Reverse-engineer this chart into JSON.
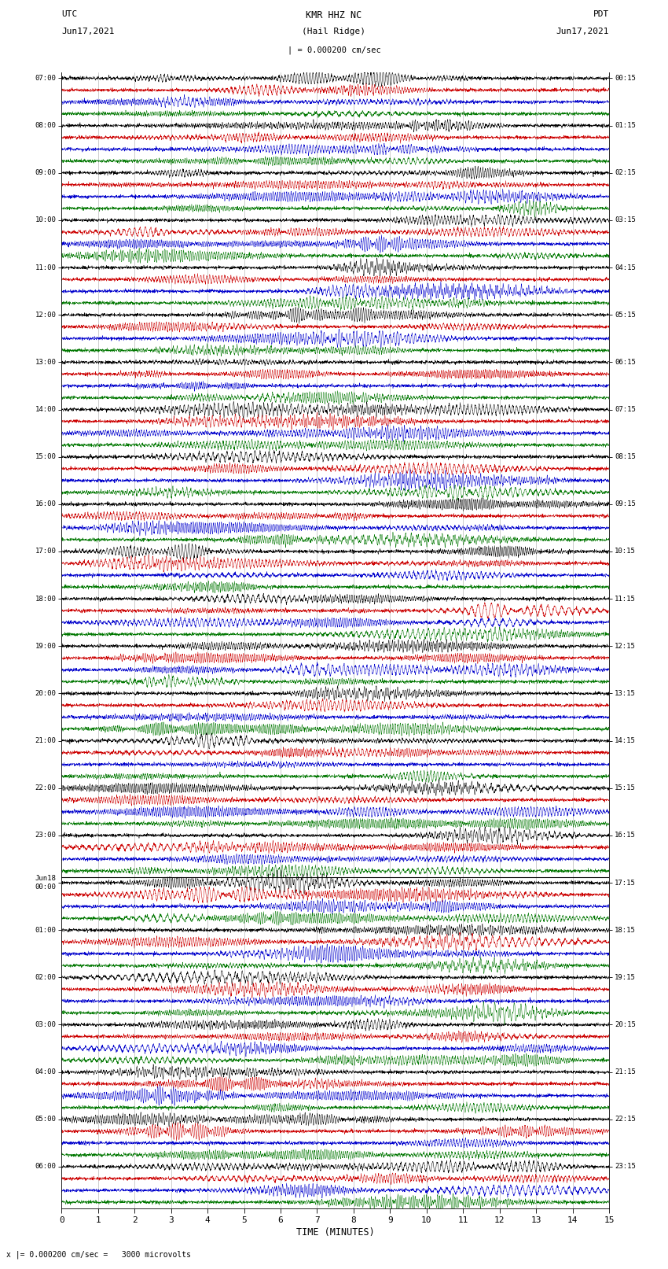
{
  "title_center_line1": "KMR HHZ NC",
  "title_center_line2": "(Hail Ridge)",
  "title_left_line1": "UTC",
  "title_left_line2": "Jun17,2021",
  "title_right_line1": "PDT",
  "title_right_line2": "Jun17,2021",
  "scale_text": "| = 0.000200 cm/sec",
  "bottom_scale_text": "x |= 0.000200 cm/sec =   3000 microvolts",
  "xlabel": "TIME (MINUTES)",
  "fig_width": 8.5,
  "fig_height": 16.13,
  "bg_color": "white",
  "trace_colors": [
    "#000000",
    "#cc0000",
    "#0000cc",
    "#007700"
  ],
  "utc_labels": [
    "07:00",
    "08:00",
    "09:00",
    "10:00",
    "11:00",
    "12:00",
    "13:00",
    "14:00",
    "15:00",
    "16:00",
    "17:00",
    "18:00",
    "19:00",
    "20:00",
    "21:00",
    "22:00",
    "23:00",
    "Jun18\n00:00",
    "01:00",
    "02:00",
    "03:00",
    "04:00",
    "05:00",
    "06:00"
  ],
  "pdt_labels": [
    "00:15",
    "01:15",
    "02:15",
    "03:15",
    "04:15",
    "05:15",
    "06:15",
    "07:15",
    "08:15",
    "09:15",
    "10:15",
    "11:15",
    "12:15",
    "13:15",
    "14:15",
    "15:15",
    "16:15",
    "17:15",
    "18:15",
    "19:15",
    "20:15",
    "21:15",
    "22:15",
    "23:15"
  ],
  "num_rows": 24,
  "traces_per_row": 4,
  "jun18_row": 17,
  "xmin": 0,
  "xmax": 15,
  "xticks": [
    0,
    1,
    2,
    3,
    4,
    5,
    6,
    7,
    8,
    9,
    10,
    11,
    12,
    13,
    14,
    15
  ],
  "noise_seed": 123,
  "n_samples": 3000,
  "base_amplitude": 0.28,
  "noise_amplitude": 0.22,
  "vertical_grid_times": [
    1,
    2,
    3,
    4,
    5,
    6,
    7,
    8,
    9,
    10,
    11,
    12,
    13,
    14
  ]
}
